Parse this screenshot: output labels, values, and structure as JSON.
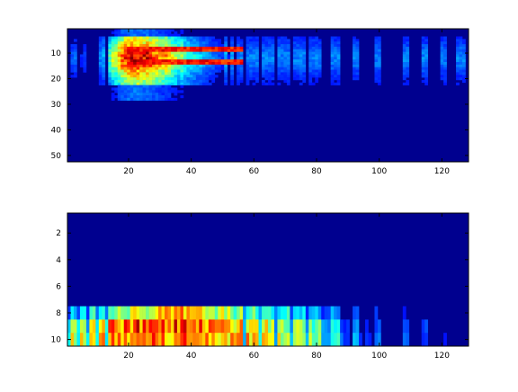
{
  "chart_data": [
    {
      "type": "heatmap",
      "title": "",
      "xlabel": "",
      "ylabel": "",
      "x_range": [
        0.5,
        128.5
      ],
      "y_range": [
        0.5,
        52.5
      ],
      "y_direction": "down",
      "xticks": [
        20,
        40,
        60,
        80,
        100,
        120
      ],
      "yticks": [
        10,
        20,
        30,
        40,
        50
      ],
      "colormap": "jet",
      "grid": false,
      "legend": "none",
      "columns": 128,
      "rows": 52,
      "active_columns": [
        2,
        3,
        5,
        6,
        8,
        9,
        11,
        12,
        14,
        15,
        16,
        17,
        18,
        19,
        20,
        21,
        22,
        23,
        24,
        25,
        26,
        27,
        28,
        29,
        30,
        31,
        32,
        33,
        34,
        35,
        36,
        37,
        38,
        39,
        40,
        41,
        42,
        43,
        44,
        45,
        46,
        47,
        48,
        49,
        50,
        51,
        52,
        53,
        54,
        55,
        56,
        58,
        59,
        60,
        61,
        63,
        64,
        65,
        66,
        68,
        69,
        70,
        71,
        73,
        74,
        75,
        76,
        78,
        79,
        80,
        81,
        85,
        86,
        87,
        92,
        93,
        99,
        100,
        108,
        109,
        114,
        115,
        120,
        121,
        125,
        126,
        127
      ],
      "column_peaks": [
        0.2,
        0.22,
        0.15,
        0.18,
        0.12,
        0.1,
        0.25,
        0.3,
        0.45,
        0.55,
        0.6,
        0.7,
        0.8,
        0.85,
        0.9,
        0.92,
        0.95,
        0.93,
        0.9,
        0.88,
        0.9,
        0.85,
        0.8,
        0.78,
        0.75,
        0.7,
        0.72,
        0.66,
        0.6,
        0.55,
        0.5,
        0.52,
        0.45,
        0.42,
        0.4,
        0.38,
        0.35,
        0.33,
        0.3,
        0.28,
        0.26,
        0.25,
        0.22,
        0.2,
        0.18,
        0.3,
        0.15,
        0.28,
        0.12,
        0.25,
        0.25
      ],
      "row_profile": "energy concentrated in rows 5-22, strongest near rows 8-16; low elsewhere"
    },
    {
      "type": "heatmap",
      "title": "",
      "xlabel": "",
      "ylabel": "",
      "x_range": [
        0.5,
        128.5
      ],
      "y_range": [
        0.5,
        10.5
      ],
      "y_direction": "down",
      "xticks": [
        20,
        40,
        60,
        80,
        100,
        120
      ],
      "yticks": [
        2,
        4,
        6,
        8,
        10
      ],
      "colormap": "jet",
      "grid": false,
      "legend": "none",
      "columns": 128,
      "rows": 10,
      "row_levels": {
        "8": [
          0.35,
          0.4,
          0.5,
          0.6,
          0.65,
          0.7,
          0.6,
          0.55,
          0.5,
          0.45,
          0.4,
          0.35,
          0.3,
          0.28,
          0.25,
          0.22,
          0.2,
          0.18,
          0.15,
          0.12
        ],
        "9": [
          0.6,
          0.65,
          0.75,
          0.8,
          0.85,
          0.82,
          0.78,
          0.72,
          0.68,
          0.6,
          0.55,
          0.5,
          0.45,
          0.4,
          0.35,
          0.3,
          0.28,
          0.25,
          0.2,
          0.15
        ],
        "10": [
          0.62,
          0.66,
          0.7,
          0.72,
          0.75,
          0.74,
          0.72,
          0.7,
          0.68,
          0.65,
          0.6,
          0.55,
          0.5,
          0.45,
          0.4,
          0.35,
          0.3,
          0.25,
          0.2,
          0.15
        ]
      },
      "row_profile": "rows 1-7 near zero; rows 8-10 active, strongest in columns 10-80"
    }
  ]
}
